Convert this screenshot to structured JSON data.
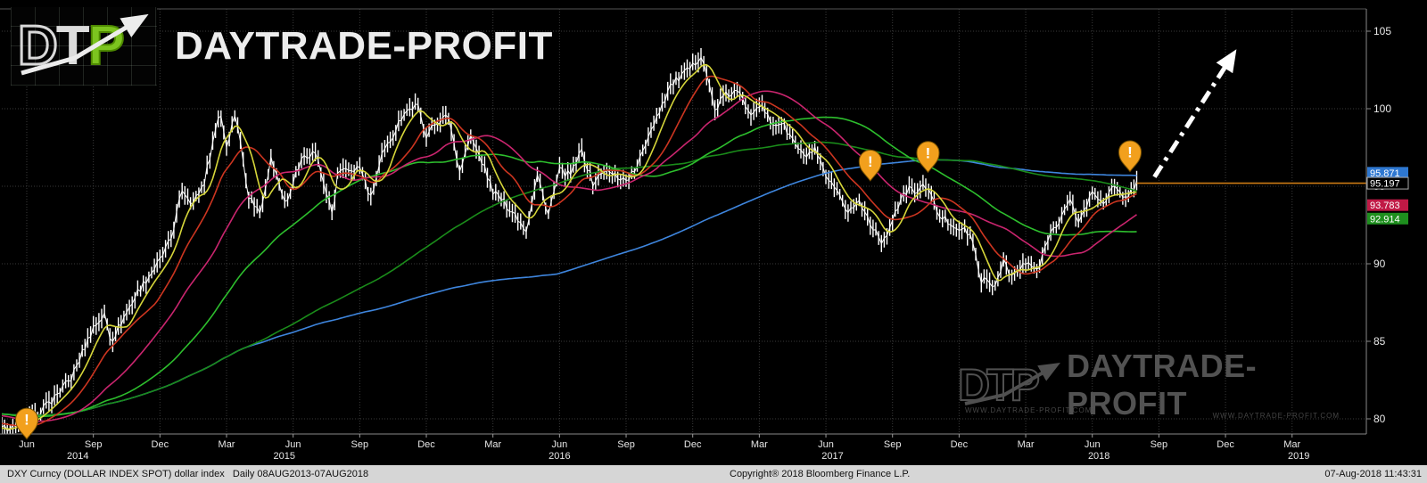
{
  "branding": {
    "logo_letter_d": "D",
    "logo_letter_t": "T",
    "logo_letter_p": "P",
    "logo_text": "DAYTRADE-PROFIT",
    "logo_accent_color": "#7cc41f",
    "watermark_letters": "DTP",
    "watermark_text": "DAYTRADE-PROFIT",
    "watermark_url": "WWW.DAYTRADE-PROFIT.COM",
    "watermark_url2": "WWW.DAYTRADE-PROFIT.COM"
  },
  "status_bar": {
    "left": "DXY Curncy (DOLLAR INDEX SPOT) dollar index   Daily 08AUG2013-07AUG2018",
    "center": "Copyright® 2018 Bloomberg Finance L.P.",
    "right": "07-Aug-2018 11:43:31"
  },
  "chart_data": {
    "type": "candlestick",
    "instrument": "DXY Curncy (DOLLAR INDEX SPOT) dollar index",
    "period": "Daily 08AUG2013-07AUG2018",
    "last_price": 95.197,
    "background": "#000000",
    "candle_color": "#ffffff",
    "grid": true,
    "ylim": [
      79.0,
      106.4
    ],
    "y_ticks": [
      105,
      100,
      95,
      90,
      85,
      80
    ],
    "x_unit": "months, t=1 is Jun 2014",
    "x_ticks": [
      {
        "t": 1,
        "label": "Jun"
      },
      {
        "t": 4,
        "label": "Sep"
      },
      {
        "t": 7,
        "label": "Dec"
      },
      {
        "t": 10,
        "label": "Mar"
      },
      {
        "t": 13,
        "label": "Jun"
      },
      {
        "t": 16,
        "label": "Sep"
      },
      {
        "t": 19,
        "label": "Dec"
      },
      {
        "t": 22,
        "label": "Mar"
      },
      {
        "t": 25,
        "label": "Jun"
      },
      {
        "t": 28,
        "label": "Sep"
      },
      {
        "t": 31,
        "label": "Dec"
      },
      {
        "t": 34,
        "label": "Mar"
      },
      {
        "t": 37,
        "label": "Jun"
      },
      {
        "t": 40,
        "label": "Sep"
      },
      {
        "t": 43,
        "label": "Dec"
      },
      {
        "t": 46,
        "label": "Mar"
      },
      {
        "t": 49,
        "label": "Jun"
      },
      {
        "t": 52,
        "label": "Sep"
      },
      {
        "t": 55,
        "label": "Dec"
      },
      {
        "t": 58,
        "label": "Mar"
      }
    ],
    "x_years": [
      {
        "t": 3.3,
        "label": "2014"
      },
      {
        "t": 12.6,
        "label": "2015"
      },
      {
        "t": 25.0,
        "label": "2016"
      },
      {
        "t": 37.3,
        "label": "2017"
      },
      {
        "t": 49.3,
        "label": "2018"
      },
      {
        "t": 58.3,
        "label": "2019"
      }
    ],
    "price_points": [
      [
        -9,
        81.5
      ],
      [
        -8,
        80.4
      ],
      [
        -7,
        79.7
      ],
      [
        -6,
        80.7
      ],
      [
        -5,
        80.3
      ],
      [
        -4.5,
        81.4
      ],
      [
        -4,
        80.9
      ],
      [
        -3,
        80.2
      ],
      [
        -2,
        80.0
      ],
      [
        -1,
        79.8
      ],
      [
        -0.5,
        79.2
      ],
      [
        0,
        79.4
      ],
      [
        1,
        79.8
      ],
      [
        2,
        81.0
      ],
      [
        3,
        82.6
      ],
      [
        4,
        85.9
      ],
      [
        4.5,
        86.7
      ],
      [
        4.8,
        85.0
      ],
      [
        6,
        88.2
      ],
      [
        7,
        90.2
      ],
      [
        7.5,
        91.6
      ],
      [
        8,
        94.8
      ],
      [
        8.5,
        93.9
      ],
      [
        9,
        95.3
      ],
      [
        9.7,
        100.0
      ],
      [
        10,
        97.6
      ],
      [
        10.4,
        99.8
      ],
      [
        11,
        94.4
      ],
      [
        11.5,
        93.3
      ],
      [
        12,
        96.8
      ],
      [
        12.7,
        93.7
      ],
      [
        13,
        95.4
      ],
      [
        13.5,
        97.0
      ],
      [
        14,
        97.2
      ],
      [
        14.8,
        93.0
      ],
      [
        15,
        95.8
      ],
      [
        16,
        96.2
      ],
      [
        16.5,
        94.2
      ],
      [
        17,
        96.9
      ],
      [
        18,
        99.8
      ],
      [
        18.6,
        100.2
      ],
      [
        19,
        98.3
      ],
      [
        19.5,
        99.2
      ],
      [
        20,
        99.5
      ],
      [
        20.5,
        96.0
      ],
      [
        21,
        98.2
      ],
      [
        21.5,
        96.6
      ],
      [
        22,
        94.7
      ],
      [
        23,
        93.2
      ],
      [
        23.5,
        92.2
      ],
      [
        24,
        95.7
      ],
      [
        24.5,
        93.2
      ],
      [
        25,
        96.0
      ],
      [
        25.5,
        95.7
      ],
      [
        26,
        97.3
      ],
      [
        26.5,
        95.2
      ],
      [
        27,
        96.0
      ],
      [
        28,
        95.4
      ],
      [
        28.5,
        96.2
      ],
      [
        29,
        98.3
      ],
      [
        30,
        101.5
      ],
      [
        31,
        102.7
      ],
      [
        31.4,
        103.6
      ],
      [
        32,
        99.9
      ],
      [
        32.4,
        100.8
      ],
      [
        33,
        101.1
      ],
      [
        33.6,
        99.8
      ],
      [
        34,
        100.3
      ],
      [
        34.6,
        99.0
      ],
      [
        35,
        99.1
      ],
      [
        36,
        96.9
      ],
      [
        36.5,
        97.3
      ],
      [
        37,
        95.6
      ],
      [
        38,
        93.4
      ],
      [
        38.5,
        94.0
      ],
      [
        39,
        92.7
      ],
      [
        39.6,
        91.3
      ],
      [
        40,
        93.0
      ],
      [
        40.7,
        94.9
      ],
      [
        41,
        94.6
      ],
      [
        41.6,
        95.1
      ],
      [
        42,
        93.2
      ],
      [
        43,
        92.3
      ],
      [
        43.5,
        91.9
      ],
      [
        44,
        89.0
      ],
      [
        44.6,
        88.5
      ],
      [
        45,
        90.3
      ],
      [
        45.3,
        89.1
      ],
      [
        46,
        90.0
      ],
      [
        46.6,
        89.6
      ],
      [
        47,
        91.7
      ],
      [
        48,
        94.0
      ],
      [
        48.4,
        92.7
      ],
      [
        49,
        94.6
      ],
      [
        49.5,
        94.0
      ],
      [
        50,
        95.0
      ],
      [
        50.4,
        94.1
      ],
      [
        51,
        95.2
      ]
    ],
    "moving_averages": [
      {
        "name": "blue",
        "color": "#3e85dd",
        "window_months": 34
      },
      {
        "name": "dark-green",
        "color": "#1a8c1a",
        "window_months": 20
      },
      {
        "name": "green",
        "color": "#2dbe2d",
        "window_months": 9.2
      },
      {
        "name": "magenta",
        "color": "#c9256e",
        "window_months": 5.0
      },
      {
        "name": "red",
        "color": "#cc3520",
        "window_months": 2.3
      },
      {
        "name": "yellow",
        "color": "#d6d63a",
        "window_months": 1.0
      }
    ],
    "axis_price_labels": [
      {
        "text": "95.871",
        "price": 95.871,
        "bg": "#2e77d0",
        "fg": "#ffffff"
      },
      {
        "text": "95.197",
        "price": 95.197,
        "bg": "#000000",
        "fg": "#ffffff",
        "border": "#aaaaaa"
      },
      {
        "text": "93.783",
        "price": 93.783,
        "bg": "#c01945",
        "fg": "#ffffff"
      },
      {
        "text": "92.914",
        "price": 92.914,
        "bg": "#1e8f1e",
        "fg": "#ffffff"
      }
    ],
    "last_price_line_color": "#cc7a14",
    "marker_color": "#f2a01d",
    "markers": [
      {
        "t": 1.0,
        "price": 78.7
      },
      {
        "t": 39.0,
        "price": 95.35
      },
      {
        "t": 41.6,
        "price": 95.9
      },
      {
        "t": 50.7,
        "price": 95.95
      }
    ],
    "trend_arrow": {
      "from": {
        "t": 51.8,
        "price": 95.6
      },
      "to": {
        "t": 55.3,
        "price": 103.4
      },
      "color": "#ffffff"
    }
  }
}
